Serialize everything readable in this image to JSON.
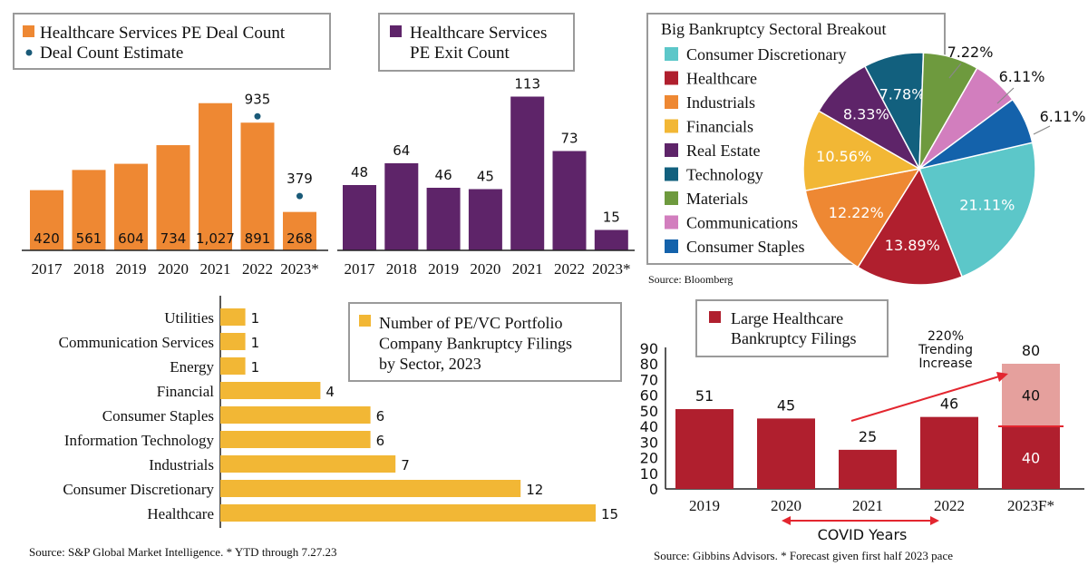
{
  "colors": {
    "orange": "#EE8833",
    "purple": "#5E2469",
    "yellow": "#F2B735",
    "red": "#B01F2E",
    "pink": "#E5A09D",
    "legend_border": "#9A9A9A",
    "dot": "#1A5A78"
  },
  "chart_data": [
    {
      "type": "bar",
      "legend": [
        "Healthcare Services PE Deal Count",
        "Deal Count Estimate"
      ],
      "categories": [
        "2017",
        "2018",
        "2019",
        "2020",
        "2021",
        "2022",
        "2023*"
      ],
      "series": [
        {
          "name": "Healthcare Services PE Deal Count",
          "values": [
            420,
            561,
            604,
            734,
            1027,
            891,
            268
          ]
        },
        {
          "name": "Deal Count Estimate",
          "values": [
            null,
            null,
            null,
            null,
            null,
            935,
            379
          ]
        }
      ],
      "value_labels": [
        "420",
        "561",
        "604",
        "734",
        "1,027",
        "891",
        "268"
      ],
      "estimate_labels": [
        "",
        "",
        "",
        "",
        "",
        "935",
        "379"
      ],
      "ylim": [
        0,
        1100
      ]
    },
    {
      "type": "bar",
      "legend": [
        "Healthcare Services PE Exit Count"
      ],
      "categories": [
        "2017",
        "2018",
        "2019",
        "2020",
        "2021",
        "2022",
        "2023*"
      ],
      "values": [
        48,
        64,
        46,
        45,
        113,
        73,
        15
      ],
      "ylim": [
        0,
        120
      ]
    },
    {
      "type": "pie",
      "title": "Big Bankruptcy Sectoral Breakout",
      "labels": [
        "Consumer Discretionary",
        "Healthcare",
        "Industrials",
        "Financials",
        "Real Estate",
        "Technology",
        "Materials",
        "Communications",
        "Consumer Staples"
      ],
      "values": [
        21.11,
        13.89,
        12.22,
        10.56,
        8.33,
        7.78,
        7.22,
        6.11,
        6.11
      ],
      "value_labels": [
        "21.11%",
        "13.89%",
        "12.22%",
        "10.56%",
        "8.33%",
        "7.78%",
        "7.22%",
        "6.11%",
        "6.11%"
      ],
      "colors": [
        "#5CC7C9",
        "#B01F2E",
        "#EE8833",
        "#F2B735",
        "#5E2469",
        "#12607E",
        "#6E9A3E",
        "#D27EBE",
        "#1462AB"
      ],
      "source": "Source: Bloomberg"
    },
    {
      "type": "bar",
      "orientation": "horizontal",
      "legend": [
        "Number of PE/VC Portfolio",
        "Company Bankruptcy Filings",
        "by Sector, 2023"
      ],
      "categories": [
        "Utilities",
        "Communication Services",
        "Energy",
        "Financial",
        "Consumer Staples",
        "Information Technology",
        "Industrials",
        "Consumer Discretionary",
        "Healthcare"
      ],
      "values": [
        1,
        1,
        1,
        4,
        6,
        6,
        7,
        12,
        15
      ],
      "xlim": [
        0,
        15
      ],
      "source": "Source:  S&P Global Market Intelligence. * YTD through 7.27.23"
    },
    {
      "type": "bar",
      "stacked": true,
      "legend": [
        "Large Healthcare",
        "Bankruptcy Filings"
      ],
      "categories": [
        "2019",
        "2020",
        "2021",
        "2022",
        "2023F*"
      ],
      "series": [
        {
          "values": [
            51,
            45,
            25,
            46,
            40
          ]
        },
        {
          "values": [
            0,
            0,
            0,
            0,
            40
          ]
        }
      ],
      "total_labels": [
        "51",
        "45",
        "25",
        "46",
        "80"
      ],
      "segment_labels": [
        "40",
        "40"
      ],
      "ylim": [
        0,
        90
      ],
      "yticks": [
        "0",
        "10",
        "20",
        "30",
        "40",
        "50",
        "60",
        "70",
        "80",
        "90"
      ],
      "annotation": [
        "220%",
        "Trending",
        "Increase"
      ],
      "covid_label": "COVID Years",
      "source": "Source:  Gibbins Advisors. * Forecast given first half 2023 pace"
    }
  ]
}
